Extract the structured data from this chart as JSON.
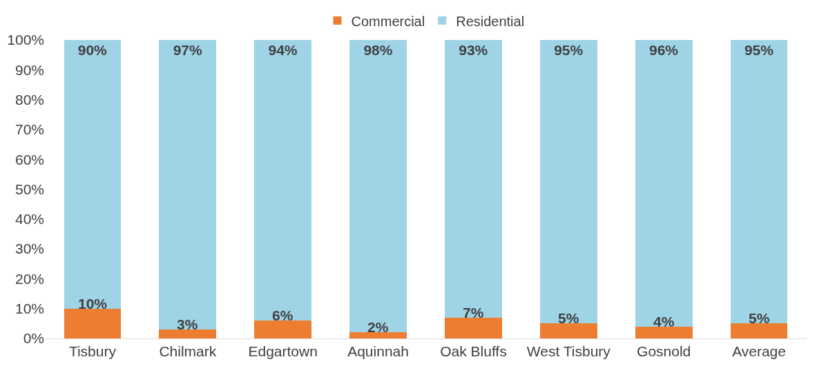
{
  "chart_data": {
    "type": "bar",
    "stacked": true,
    "categories": [
      "Tisbury",
      "Chilmark",
      "Edgartown",
      "Aquinnah",
      "Oak Bluffs",
      "West Tisbury",
      "Gosnold",
      "Average"
    ],
    "series": [
      {
        "name": "Commercial",
        "color": "#ed7d31",
        "values": [
          10,
          3,
          6,
          2,
          7,
          5,
          4,
          5
        ],
        "value_labels": [
          "10%",
          "3%",
          "6%",
          "2%",
          "7%",
          "5%",
          "4%",
          "5%"
        ]
      },
      {
        "name": "Residential",
        "color": "#9fd3e6",
        "values": [
          90,
          97,
          94,
          98,
          93,
          95,
          96,
          95
        ],
        "value_labels": [
          "90%",
          "97%",
          "94%",
          "98%",
          "93%",
          "95%",
          "96%",
          "95%"
        ]
      }
    ],
    "ylim": [
      0,
      100
    ],
    "yticks": [
      {
        "value": 0,
        "label": "0%"
      },
      {
        "value": 10,
        "label": "10%"
      },
      {
        "value": 20,
        "label": "20%"
      },
      {
        "value": 30,
        "label": "30%"
      },
      {
        "value": 40,
        "label": "40%"
      },
      {
        "value": 50,
        "label": "50%"
      },
      {
        "value": 60,
        "label": "60%"
      },
      {
        "value": 70,
        "label": "70%"
      },
      {
        "value": 80,
        "label": "80%"
      },
      {
        "value": 90,
        "label": "90%"
      },
      {
        "value": 100,
        "label": "100%"
      }
    ],
    "legend": "top"
  }
}
